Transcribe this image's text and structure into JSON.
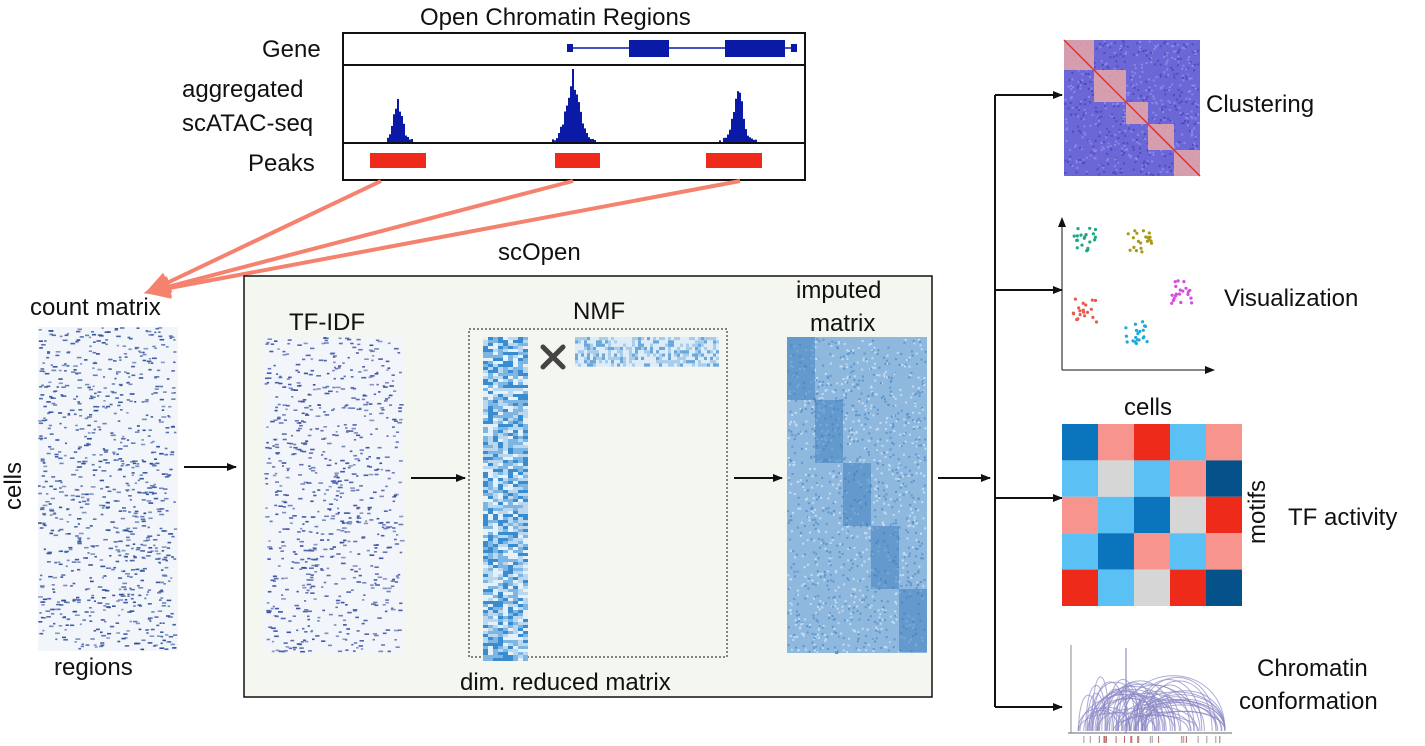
{
  "top": {
    "title": "Open Chromatin Regions",
    "row_gene": "Gene",
    "row_signal_1": "aggregated",
    "row_signal_2": "scATAC-seq",
    "row_peaks": "Peaks"
  },
  "pipeline": {
    "count_matrix": "count matrix",
    "cells": "cells",
    "regions": "regions",
    "scopen": "scOpen",
    "tfidf": "TF-IDF",
    "nmf": "NMF",
    "dim_reduced": "dim. reduced matrix",
    "imputed_1": "imputed",
    "imputed_2": "matrix"
  },
  "outputs": {
    "clustering": "Clustering",
    "visualization": "Visualization",
    "tf_cells": "cells",
    "tf_motifs": "motifs",
    "tf_activity": "TF activity",
    "chromatin_1": "Chromatin",
    "chromatin_2": "conformation"
  },
  "colors": {
    "gene": "#0a1aa6",
    "signal": "#0a1aa6",
    "peak": "#ee2a1b",
    "peak_arrow": "#f4826f",
    "panel_bg": "#f4f6f0",
    "matrix_blue": "#4f8fc9",
    "cluster_bg": "#6b67d6",
    "cluster_diag": "#e8a7a6"
  },
  "scatter_colors": [
    "#1aa985",
    "#a89a1b",
    "#e65a4f",
    "#d44ce0",
    "#20a8d8"
  ],
  "heatmap_colors": [
    [
      "#0a74bd",
      "#f7948d",
      "#ee2a1b",
      "#5bc1f5",
      "#f7948d"
    ],
    [
      "#5bc1f5",
      "#d6d6d6",
      "#5bc1f5",
      "#f7948d",
      "#045289"
    ],
    [
      "#f7948d",
      "#5bc1f5",
      "#0a74bd",
      "#d6d6d6",
      "#ee2a1b"
    ],
    [
      "#5bc1f5",
      "#0a74bd",
      "#f7948d",
      "#5bc1f5",
      "#f7948d"
    ],
    [
      "#ee2a1b",
      "#5bc1f5",
      "#d6d6d6",
      "#ee2a1b",
      "#045289"
    ]
  ]
}
